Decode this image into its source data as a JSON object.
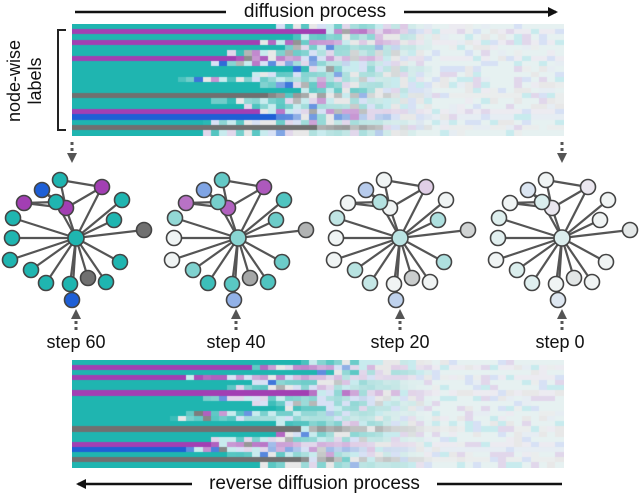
{
  "top_arrow_label": "diffusion process",
  "bottom_arrow_label": "reverse diffusion process",
  "side_label": {
    "line1": "node-wise",
    "line2": "labels"
  },
  "graphs": [
    {
      "label": "step 60"
    },
    {
      "label": "step 40"
    },
    {
      "label": "step 20"
    },
    {
      "label": "step 0"
    }
  ],
  "colors": {
    "teal": "#1fb5b0",
    "magenta": "#a23fb3",
    "blue": "#1e5fd6",
    "gray": "#707070",
    "edge": "#555555",
    "node_outline": "#444444"
  }
}
